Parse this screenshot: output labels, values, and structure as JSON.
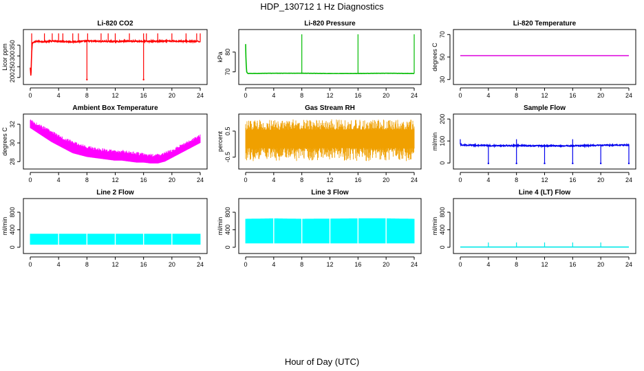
{
  "page_title": "HDP_130712  1 Hz Diagnostics",
  "x_axis_label": "Hour of Day (UTC)",
  "chart_data": [
    {
      "type": "line",
      "title": "Li-820 CO2",
      "ylabel": "Licor ppm",
      "color": "#ff0000",
      "xlim": [
        0,
        24
      ],
      "xticks": [
        0,
        4,
        8,
        12,
        16,
        20,
        24
      ],
      "ylim": [
        180,
        410
      ],
      "yticks": [
        200,
        250,
        300,
        350
      ],
      "series": [
        {
          "baseline": 368,
          "noise": 3,
          "x": [
            0,
            0.1,
            0.2,
            0.3,
            1,
            2,
            3,
            4,
            6,
            8,
            10,
            12,
            14,
            16,
            18,
            20,
            22,
            24
          ],
          "y": [
            245,
            200,
            320,
            362,
            368,
            367,
            369,
            368,
            366,
            369,
            368,
            367,
            369,
            368,
            368,
            369,
            368,
            367
          ]
        }
      ],
      "spikes_up": [
        0.2,
        2,
        3.1,
        4,
        4.6,
        6,
        6.8,
        8.1,
        10,
        11,
        12,
        14,
        16,
        16.4,
        18,
        20,
        22,
        23.5,
        24
      ],
      "spikes_down": [
        8,
        16
      ],
      "spike_up_to": 405,
      "spike_down_to": 190
    },
    {
      "type": "line",
      "title": "Li-820 Pressure",
      "ylabel": "kPa",
      "color": "#00bb00",
      "xlim": [
        0,
        24
      ],
      "xticks": [
        0,
        4,
        8,
        12,
        16,
        20,
        24
      ],
      "ylim": [
        65,
        90
      ],
      "yticks": [
        70,
        80
      ],
      "series": [
        {
          "baseline": 69.2,
          "noise": 0.05,
          "x": [
            0,
            0.05,
            0.15,
            0.3,
            4,
            8,
            12,
            16,
            20,
            24
          ],
          "y": [
            84,
            76,
            70,
            69.2,
            69.3,
            69.3,
            69.2,
            69.2,
            69.3,
            69.2
          ]
        }
      ],
      "spikes_up": [
        8,
        16,
        24
      ],
      "spike_up_to": 89,
      "spikes_down": [],
      "spike_down_to": 69
    },
    {
      "type": "line",
      "title": "Li-820 Temperature",
      "ylabel": "degrees C",
      "color": "#dd00dd",
      "xlim": [
        0,
        24
      ],
      "xticks": [
        0,
        4,
        8,
        12,
        16,
        20,
        24
      ],
      "ylim": [
        28,
        72
      ],
      "yticks": [
        30,
        50,
        70
      ],
      "series": [
        {
          "baseline": 51.2,
          "noise": 0.0,
          "x": [
            0,
            24
          ],
          "y": [
            51.2,
            51.2
          ]
        }
      ],
      "spikes_up": [],
      "spikes_down": [],
      "spike_up_to": 51.2,
      "spike_down_to": 51.2
    },
    {
      "type": "area",
      "title": "Ambient Box Temperature",
      "ylabel": "degrees C",
      "color": "#ff00ff",
      "xlim": [
        0,
        24
      ],
      "xticks": [
        0,
        4,
        8,
        12,
        16,
        20,
        24
      ],
      "ylim": [
        27.5,
        32.8
      ],
      "yticks": [
        28,
        30,
        32
      ],
      "series": [
        {
          "x": [
            0,
            1,
            2,
            3,
            4,
            5,
            6,
            7,
            8,
            9,
            10,
            11,
            12,
            13,
            14,
            15,
            16,
            17,
            18,
            19,
            20,
            21,
            22,
            23,
            24
          ],
          "upper": [
            32.3,
            31.9,
            31.5,
            31.1,
            30.7,
            30.3,
            30.0,
            29.7,
            29.5,
            29.3,
            29.2,
            29.1,
            29.0,
            29.0,
            28.9,
            28.8,
            28.7,
            28.6,
            28.6,
            28.8,
            29.1,
            29.5,
            29.9,
            30.3,
            30.7
          ],
          "lower": [
            31.6,
            31.1,
            30.6,
            30.1,
            29.7,
            29.3,
            28.9,
            28.7,
            28.5,
            28.4,
            28.3,
            28.2,
            28.1,
            28.1,
            28.0,
            27.9,
            27.9,
            27.8,
            27.8,
            28.0,
            28.4,
            28.8,
            29.2,
            29.6,
            30.0
          ]
        }
      ]
    },
    {
      "type": "area",
      "title": "Gas Stream RH",
      "ylabel": "percent",
      "color": "#f0a000",
      "xlim": [
        0,
        24
      ],
      "xticks": [
        0,
        4,
        8,
        12,
        16,
        20,
        24
      ],
      "ylim": [
        -0.85,
        1.05
      ],
      "yticks": [
        -0.5,
        0.5
      ],
      "series": [
        {
          "x": [
            0,
            24
          ],
          "upper": [
            0.95,
            0.95
          ],
          "lower": [
            -0.65,
            -0.65
          ],
          "dense_upper": 0.55,
          "dense_lower": -0.15
        }
      ]
    },
    {
      "type": "line",
      "title": "Sample Flow",
      "ylabel": "ml/min",
      "color": "#0000ee",
      "xlim": [
        0,
        24
      ],
      "xticks": [
        0,
        4,
        8,
        12,
        16,
        20,
        24
      ],
      "ylim": [
        -15,
        210
      ],
      "yticks": [
        0,
        100,
        200
      ],
      "series": [
        {
          "baseline": 80,
          "noise": 2.5,
          "x": [
            0,
            0.2,
            4,
            8,
            12,
            16,
            20,
            24
          ],
          "y": [
            85,
            82,
            79,
            79,
            78,
            78,
            80,
            82
          ]
        }
      ],
      "spikes_up": [
        0,
        8,
        16
      ],
      "spike_up_to": 108,
      "spikes_down": [
        4,
        8,
        12,
        16,
        20,
        24
      ],
      "spike_down_to": -2
    },
    {
      "type": "area",
      "title": "Line 2 Flow",
      "ylabel": "ml/min",
      "color": "#00ffff",
      "xlim": [
        0,
        24
      ],
      "xticks": [
        0,
        4,
        8,
        12,
        16,
        20,
        24
      ],
      "ylim": [
        -80,
        1050
      ],
      "yticks": [
        0,
        400,
        800
      ],
      "series": [
        {
          "x": [
            0,
            24
          ],
          "upper": [
            310,
            310
          ],
          "lower": [
            60,
            60
          ]
        }
      ],
      "gaps": [
        4,
        8,
        12,
        16,
        20
      ]
    },
    {
      "type": "area",
      "title": "Line 3 Flow",
      "ylabel": "ml/min",
      "color": "#00ffff",
      "xlim": [
        0,
        24
      ],
      "xticks": [
        0,
        4,
        8,
        12,
        16,
        20,
        24
      ],
      "ylim": [
        -80,
        1050
      ],
      "yticks": [
        0,
        400,
        800
      ],
      "series": [
        {
          "x": [
            0,
            4,
            8,
            12,
            16,
            20,
            24
          ],
          "upper": [
            650,
            660,
            650,
            655,
            660,
            660,
            650
          ],
          "lower": [
            90,
            90,
            90,
            90,
            90,
            90,
            90
          ]
        }
      ],
      "gaps": [
        4,
        8,
        12,
        16,
        20
      ]
    },
    {
      "type": "line",
      "title": "Line 4 (LT) Flow",
      "ylabel": "ml/min",
      "color": "#00e8e8",
      "xlim": [
        0,
        24
      ],
      "xticks": [
        0,
        4,
        8,
        12,
        16,
        20,
        24
      ],
      "ylim": [
        -80,
        1050
      ],
      "yticks": [
        0,
        400,
        800
      ],
      "series": [
        {
          "baseline": 5,
          "noise": 0,
          "x": [
            0,
            24
          ],
          "y": [
            5,
            5
          ]
        }
      ],
      "spikes_up": [
        4,
        8,
        12,
        16,
        20
      ],
      "spike_up_to": 110,
      "spikes_down": [],
      "spike_down_to": 5
    }
  ]
}
